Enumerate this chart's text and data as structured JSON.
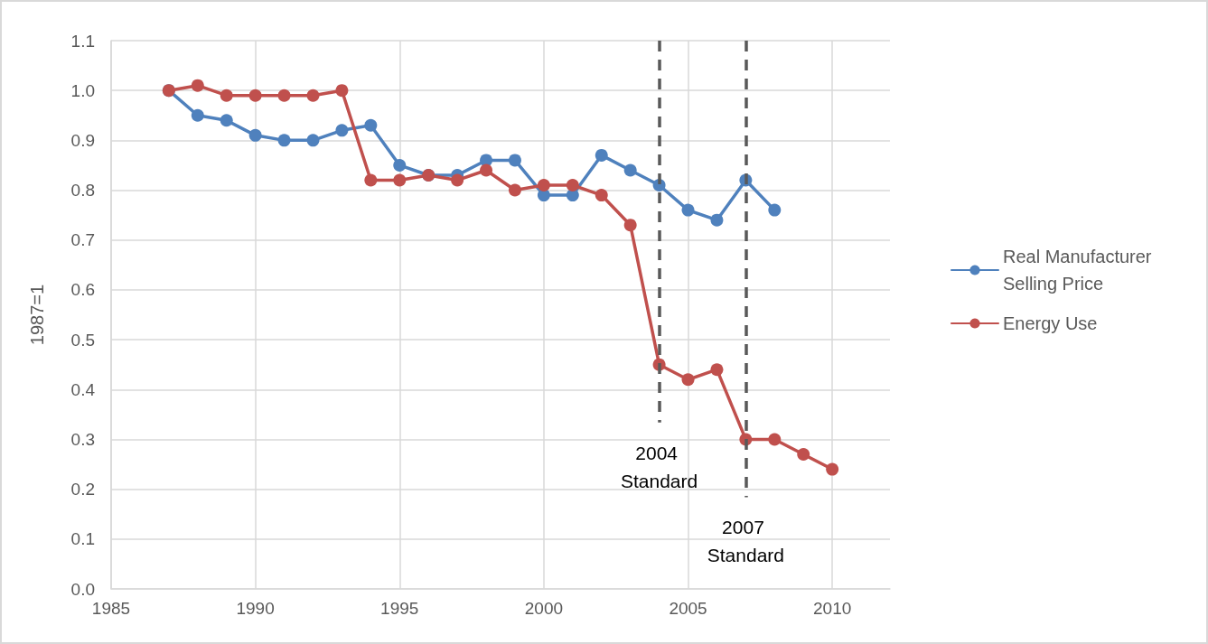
{
  "chart_data": {
    "type": "line",
    "ylabel": "1987=1",
    "x": [
      1987,
      1988,
      1989,
      1990,
      1991,
      1992,
      1993,
      1994,
      1995,
      1996,
      1997,
      1998,
      1999,
      2000,
      2001,
      2002,
      2003,
      2004,
      2005,
      2006,
      2007,
      2008,
      2009,
      2010
    ],
    "series": [
      {
        "name": "Real Manufacturer Selling Price",
        "color": "#4f81bd",
        "values": [
          1.0,
          0.95,
          0.94,
          0.91,
          0.9,
          0.9,
          0.92,
          0.93,
          0.85,
          0.83,
          0.83,
          0.86,
          0.86,
          0.79,
          0.79,
          0.87,
          0.84,
          0.81,
          0.76,
          0.74,
          0.82,
          0.76,
          null,
          null
        ]
      },
      {
        "name": "Energy Use",
        "color": "#c0504d",
        "values": [
          1.0,
          1.01,
          0.99,
          0.99,
          0.99,
          0.99,
          1.0,
          0.82,
          0.82,
          0.83,
          0.82,
          0.84,
          0.8,
          0.81,
          0.81,
          0.79,
          0.73,
          0.45,
          0.42,
          0.44,
          0.3,
          0.3,
          0.27,
          0.24
        ]
      }
    ],
    "xlim": [
      1985,
      2012
    ],
    "xticks": [
      1985,
      1990,
      1995,
      2000,
      2005,
      2010
    ],
    "ylim": [
      0,
      1.1
    ],
    "yticks": [
      {
        "value": 0,
        "label": "0.0"
      },
      0.1,
      0.2,
      0.3,
      0.4,
      0.5,
      0.6,
      0.7,
      0.8,
      0.9,
      {
        "value": 1,
        "label": "1.0"
      },
      1.1
    ],
    "ref_lines": [
      {
        "axis": "x",
        "value": 2004,
        "label": "2004 Standard",
        "color": "#595959",
        "line_style": "dashed"
      },
      {
        "axis": "x",
        "value": 2007,
        "label": "2007 Standard",
        "color": "#595959",
        "line_style": "dashed"
      }
    ],
    "grid": true,
    "legend": "right",
    "marker": "circle",
    "line_style": "solid"
  }
}
